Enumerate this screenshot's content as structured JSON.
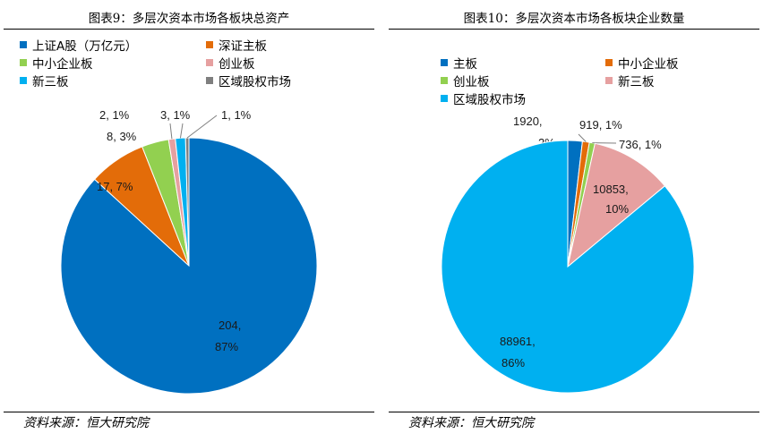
{
  "chart_data": [
    {
      "type": "pie",
      "title": "图表9：多层次资本市场各板块总资产",
      "source": "资料来源：恒大研究院",
      "categories": [
        "上证A股（万亿元）",
        "深证主板",
        "中小企业板",
        "创业板",
        "新三板",
        "区域股权市场"
      ],
      "values": [
        204,
        17,
        8,
        2,
        3,
        1
      ],
      "percents": [
        "87%",
        "7%",
        "3%",
        "1%",
        "1%",
        "1%"
      ],
      "data_labels": [
        "204,",
        "17, 7%",
        "8, 3%",
        "2, 1%",
        "3, 1%",
        "1, 1%"
      ],
      "colors": [
        "#0070C0",
        "#E36C09",
        "#92D050",
        "#E6A0A0",
        "#00B0F0",
        "#7F7F7F"
      ]
    },
    {
      "type": "pie",
      "title": "图表10：多层次资本市场各板块企业数量",
      "source": "资料来源：恒大研究院",
      "categories": [
        "主板",
        "中小企业板",
        "创业板",
        "新三板",
        "区域股权市场"
      ],
      "values": [
        1920,
        919,
        736,
        10853,
        88961
      ],
      "percents": [
        "2%",
        "1%",
        "1%",
        "10%",
        "86%"
      ],
      "data_labels": [
        "1920,",
        "919, 1%",
        "736, 1%",
        "10853,",
        "88961,"
      ],
      "colors": [
        "#0070C0",
        "#E36C09",
        "#92D050",
        "#E6A0A0",
        "#00B0F0"
      ]
    }
  ]
}
